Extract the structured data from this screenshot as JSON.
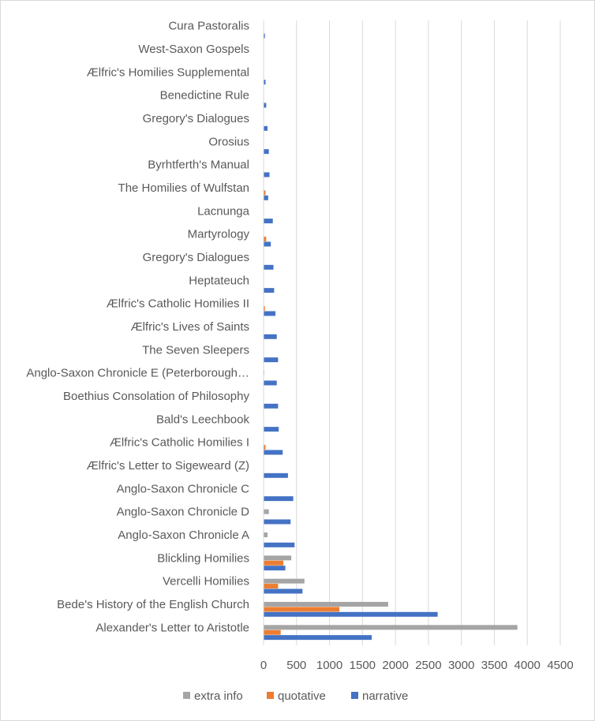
{
  "chart_data": {
    "type": "bar",
    "orientation": "horizontal",
    "categories": [
      "Alexander's Letter to Aristotle",
      "Bede's History of the English Church",
      "Vercelli Homilies",
      "Blickling Homilies",
      "Anglo-Saxon Chronicle A",
      "Anglo-Saxon Chronicle D",
      "Anglo-Saxon Chronicle C",
      "Ælfric's Letter to Sigeweard (Z)",
      "Ælfric's Catholic Homilies I",
      "Bald's Leechbook",
      "Boethius Consolation of Philosophy",
      "Anglo-Saxon Chronicle E (Peterborough…",
      "The Seven Sleepers",
      "Ælfric's Lives of Saints",
      "Ælfric's Catholic Homilies II",
      "Heptateuch",
      "Gregory's Dialogues",
      "Martyrology",
      "Lacnunga",
      "The Homilies of Wulfstan",
      "Byrhtferth's Manual",
      "Orosius",
      "Gregory's Dialogues",
      "Benedictine Rule",
      "Ælfric's Homilies Supplemental",
      "West-Saxon Gospels",
      "Cura Pastoralis"
    ],
    "series": [
      {
        "name": "extra info",
        "color": "#a5a5a5",
        "values": [
          3850,
          1890,
          620,
          420,
          60,
          80,
          0,
          0,
          0,
          0,
          0,
          10,
          0,
          0,
          0,
          0,
          0,
          0,
          0,
          0,
          0,
          0,
          0,
          0,
          0,
          0,
          0
        ]
      },
      {
        "name": "quotative",
        "color": "#ed7d31",
        "values": [
          260,
          1150,
          220,
          300,
          0,
          0,
          0,
          0,
          30,
          0,
          0,
          0,
          0,
          0,
          20,
          0,
          0,
          40,
          0,
          30,
          0,
          0,
          0,
          0,
          0,
          0,
          0
        ]
      },
      {
        "name": "narrative",
        "color": "#4472c4",
        "values": [
          1640,
          2640,
          590,
          330,
          470,
          410,
          450,
          370,
          290,
          230,
          220,
          200,
          220,
          200,
          180,
          160,
          150,
          110,
          140,
          70,
          90,
          80,
          60,
          40,
          30,
          0,
          20
        ]
      }
    ],
    "xlim": [
      0,
      4500
    ],
    "xticks": [
      "0",
      "500",
      "1000",
      "1500",
      "2000",
      "2500",
      "3000",
      "3500",
      "4000",
      "4500"
    ],
    "grid": true,
    "legend_position": "bottom"
  }
}
